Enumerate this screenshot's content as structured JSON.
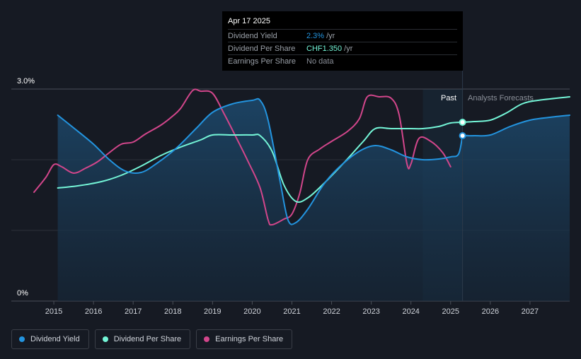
{
  "tooltip": {
    "date": "Apr 17 2025",
    "rows": [
      {
        "label": "Dividend Yield",
        "value": "2.3%",
        "unit": "/yr",
        "color": "#2394df"
      },
      {
        "label": "Dividend Per Share",
        "value": "CHF1.350",
        "unit": "/yr",
        "color": "#74f5d7"
      },
      {
        "label": "Earnings Per Share",
        "value": "No data",
        "unit": "",
        "color": "#8a8f98"
      }
    ]
  },
  "legend": [
    {
      "label": "Dividend Yield",
      "color": "#2394df"
    },
    {
      "label": "Dividend Per Share",
      "color": "#74f5d7"
    },
    {
      "label": "Earnings Per Share",
      "color": "#d2468b"
    }
  ],
  "chart_data": {
    "type": "line",
    "title": "",
    "xlabel": "",
    "ylabel": "",
    "x_ticks": [
      "2015",
      "2016",
      "2017",
      "2018",
      "2019",
      "2020",
      "2021",
      "2022",
      "2023",
      "2024",
      "2025",
      "2026",
      "2027"
    ],
    "y_ticks": [
      "0%",
      "3.0%"
    ],
    "ylim": [
      0,
      3.0
    ],
    "xlim": [
      2014.5,
      2028
    ],
    "grid": true,
    "legend_position": "bottom-left",
    "regions": {
      "past_label": "Past",
      "forecast_label": "Analysts Forecasts",
      "past_band_start": 2024.3,
      "divider": 2025.3
    },
    "series": [
      {
        "name": "Dividend Yield",
        "color": "#2394df",
        "axis": "percent",
        "points": [
          [
            2015.1,
            2.63
          ],
          [
            2015.5,
            2.45
          ],
          [
            2016.0,
            2.22
          ],
          [
            2016.4,
            2.0
          ],
          [
            2016.8,
            1.84
          ],
          [
            2017.2,
            1.82
          ],
          [
            2017.6,
            1.95
          ],
          [
            2018.1,
            2.17
          ],
          [
            2018.6,
            2.45
          ],
          [
            2019.0,
            2.67
          ],
          [
            2019.5,
            2.79
          ],
          [
            2020.0,
            2.84
          ],
          [
            2020.2,
            2.84
          ],
          [
            2020.4,
            2.56
          ],
          [
            2020.7,
            1.7
          ],
          [
            2020.9,
            1.15
          ],
          [
            2021.1,
            1.11
          ],
          [
            2021.4,
            1.3
          ],
          [
            2021.8,
            1.65
          ],
          [
            2022.2,
            1.9
          ],
          [
            2022.7,
            2.12
          ],
          [
            2023.1,
            2.2
          ],
          [
            2023.5,
            2.14
          ],
          [
            2023.9,
            2.04
          ],
          [
            2024.3,
            2.0
          ],
          [
            2024.7,
            2.01
          ],
          [
            2025.0,
            2.04
          ],
          [
            2025.2,
            2.08
          ],
          [
            2025.3,
            2.34
          ]
        ]
      },
      {
        "name": "Dividend Yield forecast",
        "color": "#2394df",
        "axis": "percent",
        "forecast": true,
        "points": [
          [
            2025.3,
            2.34
          ],
          [
            2025.6,
            2.34
          ],
          [
            2026.0,
            2.35
          ],
          [
            2026.5,
            2.47
          ],
          [
            2027.0,
            2.56
          ],
          [
            2027.5,
            2.6
          ],
          [
            2028.0,
            2.63
          ]
        ]
      },
      {
        "name": "Dividend Per Share",
        "color": "#74f5d7",
        "axis": "percent",
        "points": [
          [
            2015.1,
            1.6
          ],
          [
            2015.6,
            1.63
          ],
          [
            2016.2,
            1.69
          ],
          [
            2016.7,
            1.78
          ],
          [
            2017.2,
            1.91
          ],
          [
            2017.7,
            2.06
          ],
          [
            2018.2,
            2.18
          ],
          [
            2018.7,
            2.28
          ],
          [
            2019.0,
            2.35
          ],
          [
            2019.5,
            2.35
          ],
          [
            2020.0,
            2.35
          ],
          [
            2020.2,
            2.34
          ],
          [
            2020.5,
            2.12
          ],
          [
            2020.8,
            1.64
          ],
          [
            2021.1,
            1.41
          ],
          [
            2021.4,
            1.46
          ],
          [
            2021.8,
            1.66
          ],
          [
            2022.3,
            1.95
          ],
          [
            2022.8,
            2.26
          ],
          [
            2023.1,
            2.44
          ],
          [
            2023.5,
            2.44
          ],
          [
            2024.0,
            2.44
          ],
          [
            2024.3,
            2.44
          ],
          [
            2024.7,
            2.47
          ],
          [
            2025.0,
            2.52
          ],
          [
            2025.3,
            2.53
          ]
        ]
      },
      {
        "name": "Dividend Per Share forecast",
        "color": "#74f5d7",
        "axis": "percent",
        "forecast": true,
        "points": [
          [
            2025.3,
            2.53
          ],
          [
            2025.6,
            2.54
          ],
          [
            2026.0,
            2.56
          ],
          [
            2026.4,
            2.66
          ],
          [
            2026.8,
            2.79
          ],
          [
            2027.2,
            2.84
          ],
          [
            2028.0,
            2.89
          ]
        ]
      },
      {
        "name": "Earnings Per Share",
        "color": "#d2468b",
        "axis": "percent",
        "points": [
          [
            2014.5,
            1.54
          ],
          [
            2014.8,
            1.75
          ],
          [
            2015.0,
            1.93
          ],
          [
            2015.2,
            1.9
          ],
          [
            2015.5,
            1.81
          ],
          [
            2015.8,
            1.88
          ],
          [
            2016.1,
            1.97
          ],
          [
            2016.4,
            2.1
          ],
          [
            2016.7,
            2.22
          ],
          [
            2017.0,
            2.25
          ],
          [
            2017.3,
            2.36
          ],
          [
            2017.7,
            2.49
          ],
          [
            2018.0,
            2.62
          ],
          [
            2018.2,
            2.73
          ],
          [
            2018.5,
            2.98
          ],
          [
            2018.7,
            2.97
          ],
          [
            2019.0,
            2.94
          ],
          [
            2019.3,
            2.64
          ],
          [
            2019.6,
            2.31
          ],
          [
            2019.9,
            1.97
          ],
          [
            2020.2,
            1.6
          ],
          [
            2020.4,
            1.15
          ],
          [
            2020.5,
            1.08
          ],
          [
            2020.8,
            1.16
          ],
          [
            2021.0,
            1.23
          ],
          [
            2021.2,
            1.53
          ],
          [
            2021.4,
            2.0
          ],
          [
            2021.7,
            2.15
          ],
          [
            2022.0,
            2.26
          ],
          [
            2022.4,
            2.4
          ],
          [
            2022.7,
            2.58
          ],
          [
            2022.9,
            2.89
          ],
          [
            2023.2,
            2.89
          ],
          [
            2023.5,
            2.87
          ],
          [
            2023.7,
            2.64
          ],
          [
            2023.9,
            1.94
          ],
          [
            2024.0,
            1.94
          ],
          [
            2024.2,
            2.3
          ],
          [
            2024.5,
            2.26
          ],
          [
            2024.8,
            2.1
          ],
          [
            2025.0,
            1.9
          ]
        ]
      }
    ],
    "markers": [
      {
        "series": "Dividend Yield",
        "x": 2025.3,
        "y": 2.34
      },
      {
        "series": "Dividend Per Share",
        "x": 2025.3,
        "y": 2.53
      }
    ]
  }
}
